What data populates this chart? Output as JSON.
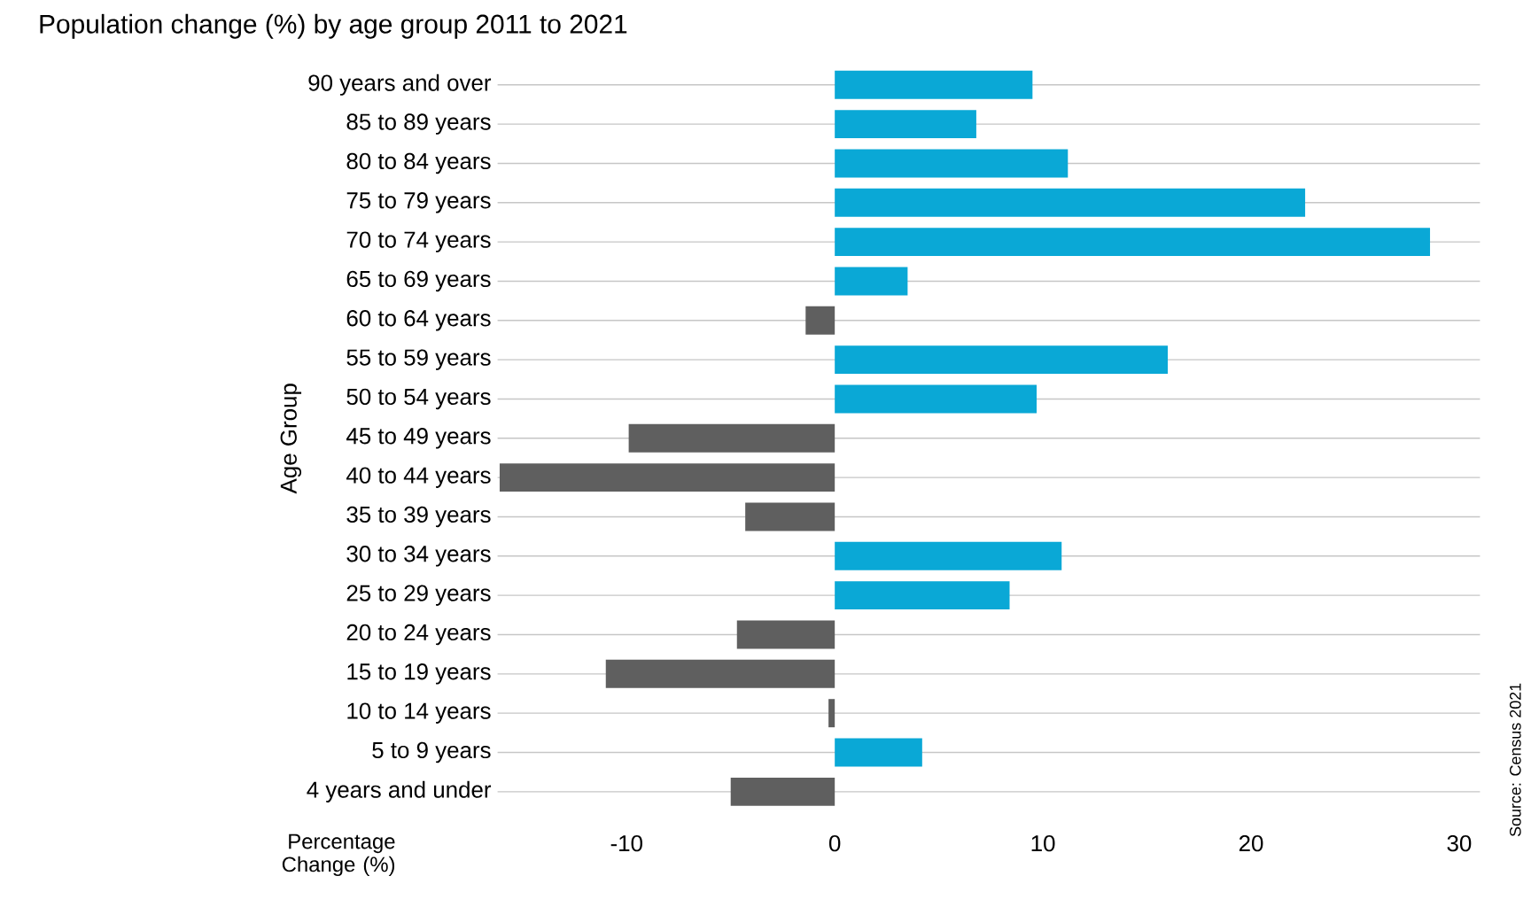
{
  "chart_data": {
    "type": "bar",
    "orientation": "horizontal",
    "title": "Population change (%) by age group 2011 to 2021",
    "xlabel": "Percentage Change (%)",
    "ylabel": "Age Group",
    "annotations": [
      "Source: Census 2021"
    ],
    "categories": [
      "90 years and over",
      "85 to 89 years",
      "80 to 84 years",
      "75 to 79 years",
      "70 to 74 years",
      "65 to 69 years",
      "60 to 64 years",
      "55 to 59 years",
      "50 to 54 years",
      "45 to 49 years",
      "40 to 44 years",
      "35 to 39 years",
      "30 to 34 years",
      "25 to 29 years",
      "20 to 24 years",
      "15 to 19 years",
      "10 to 14 years",
      "5 to 9 years",
      "4 years and under"
    ],
    "values": [
      9.5,
      6.8,
      11.2,
      22.6,
      28.6,
      3.5,
      -1.4,
      16.0,
      9.7,
      -9.9,
      -16.1,
      -4.3,
      10.9,
      8.4,
      -4.7,
      -11.0,
      -0.3,
      4.2,
      -5.0
    ],
    "colors": [
      "#0aa8d6",
      "#0aa8d6",
      "#0aa8d6",
      "#0aa8d6",
      "#0aa8d6",
      "#0aa8d6",
      "#5f5f5f",
      "#0aa8d6",
      "#0aa8d6",
      "#5f5f5f",
      "#5f5f5f",
      "#5f5f5f",
      "#0aa8d6",
      "#0aa8d6",
      "#5f5f5f",
      "#5f5f5f",
      "#5f5f5f",
      "#0aa8d6",
      "#5f5f5f"
    ],
    "xlim": [
      -16.2,
      31
    ],
    "xticks": [
      -10,
      0,
      10,
      20,
      30
    ],
    "grid": "y"
  }
}
